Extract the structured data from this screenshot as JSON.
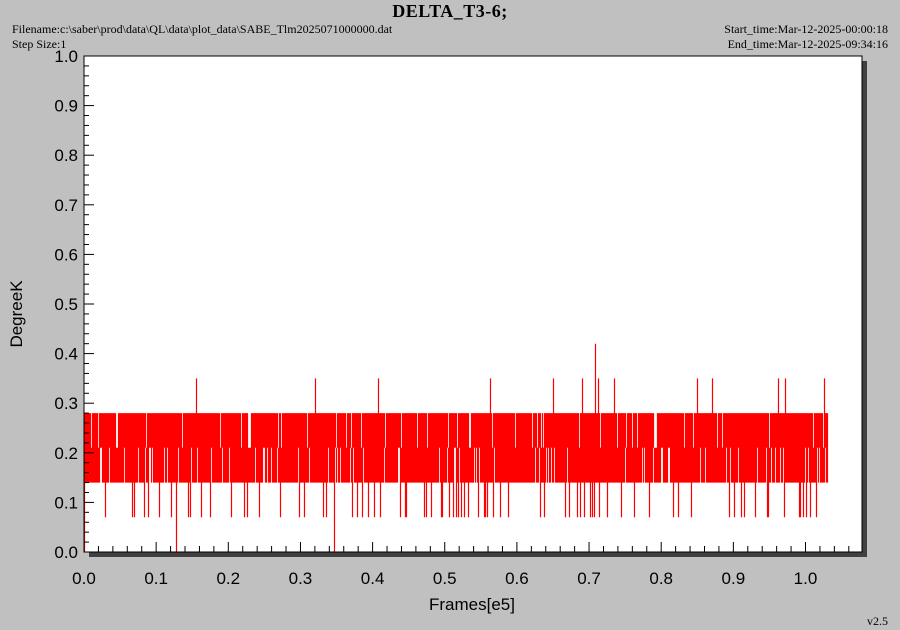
{
  "header": {
    "title": "DELTA_T3-6;",
    "filename": "Filename:c:\\saber\\prod\\data\\QL\\data\\plot_data\\SABE_Tlm2025071000000.dat",
    "step_size": "Step Size:1",
    "start_time": "Start_time:Mar-12-2025-00:00:18",
    "end_time": "End_time:Mar-12-2025-09:34:16",
    "version": "v2.5"
  },
  "colors": {
    "background": "#c0c0c0",
    "plot_area": "#ffffff",
    "series": "#ff0000",
    "shadow": "#404040"
  },
  "chart_data": {
    "type": "line",
    "title": "DELTA_T3-6;",
    "xlabel": "Frames[e5]",
    "ylabel": "DegreeK",
    "xlim": [
      0.0,
      1.08
    ],
    "ylim": [
      0.0,
      1.0
    ],
    "x_ticks": [
      "0.0",
      "0.1",
      "0.2",
      "0.3",
      "0.4",
      "0.5",
      "0.6",
      "0.7",
      "0.8",
      "0.9",
      "1.0"
    ],
    "y_ticks": [
      "0.0",
      "0.1",
      "0.2",
      "0.3",
      "0.4",
      "0.5",
      "0.6",
      "0.7",
      "0.8",
      "0.9",
      "1.0"
    ],
    "grid": false,
    "series": [
      {
        "color": "#ff0000",
        "x_range": [
          0.0,
          1.03
        ],
        "levels": [
          0.07,
          0.14,
          0.21,
          0.28
        ],
        "band": [
          0.14,
          0.28
        ],
        "spikes": [
          {
            "x": 0.0,
            "y": 0.0
          },
          {
            "x": 0.128,
            "y": 0.0
          },
          {
            "x": 0.155,
            "y": 0.35
          },
          {
            "x": 0.32,
            "y": 0.35
          },
          {
            "x": 0.346,
            "y": 0.0
          },
          {
            "x": 0.408,
            "y": 0.35
          },
          {
            "x": 0.563,
            "y": 0.35
          },
          {
            "x": 0.65,
            "y": 0.35
          },
          {
            "x": 0.69,
            "y": 0.35
          },
          {
            "x": 0.708,
            "y": 0.42
          },
          {
            "x": 0.713,
            "y": 0.35
          },
          {
            "x": 0.735,
            "y": 0.35
          },
          {
            "x": 0.85,
            "y": 0.35
          },
          {
            "x": 0.87,
            "y": 0.35
          },
          {
            "x": 0.962,
            "y": 0.35
          },
          {
            "x": 0.972,
            "y": 0.35
          },
          {
            "x": 1.025,
            "y": 0.35
          }
        ]
      }
    ]
  }
}
